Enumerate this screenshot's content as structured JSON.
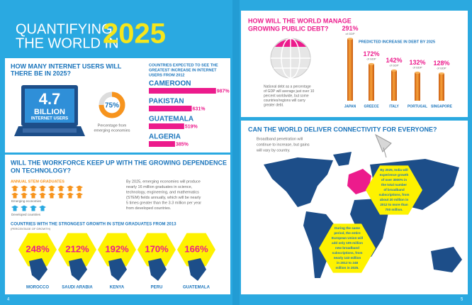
{
  "left_page": {
    "title": {
      "lines": [
        "QUANTIFYING",
        "THE WORLD IN"
      ],
      "year": "2025"
    },
    "internet": {
      "heading": [
        "HOW MANY INTERNET USERS WILL",
        "THERE BE IN 2025?"
      ],
      "users": {
        "number": "4.7",
        "unit": "BILLION",
        "label": "INTERNET USERS"
      },
      "share": {
        "value": 75,
        "label": "75%",
        "caption": [
          "Percentage from",
          "emerging economies"
        ]
      },
      "countries_heading": [
        "COUNTRIES EXPECTED TO SEE THE",
        "GREATEST INCREASE IN INTERNET",
        "USERS FROM 2012"
      ],
      "countries": [
        {
          "name": "CAMEROON",
          "value": 987,
          "label": "987%"
        },
        {
          "name": "PAKISTAN",
          "value": 631,
          "label": "631%"
        },
        {
          "name": "GUATEMALA",
          "value": 519,
          "label": "519%"
        },
        {
          "name": "ALGERIA",
          "value": 385,
          "label": "385%"
        }
      ]
    },
    "stem": {
      "heading": [
        "WILL THE WORKFORCE KEEP UP WITH THE GROWING DEPENDENCE",
        "ON TECHNOLOGY?"
      ],
      "graduates_heading": "ANNUAL STEM GRADUATES",
      "emerging_label": "Emerging economies",
      "developed_label": "Developed countries",
      "paragraph": [
        "By 2025, emerging economies will produce",
        "nearly 16 million graduates in science,",
        "technology, engineering, and mathematics",
        "(STEM) fields annually, which will be nearly",
        "5 times greater than the 3.3 million per year",
        "from developed countries."
      ],
      "growth_heading": "COUNTRIES WITH THE STRONGEST GROWTH IN STEM GRADUATES FROM 2013",
      "growth_subheading": "(PERCENTAGE OF GROWTH)",
      "countries": [
        {
          "name": "MOROCCO",
          "growth": "248%"
        },
        {
          "name": "SAUDI ARABIA",
          "growth": "212%"
        },
        {
          "name": "KENYA",
          "growth": "192%"
        },
        {
          "name": "PERU",
          "growth": "170%"
        },
        {
          "name": "GUATEMALA",
          "growth": "166%"
        }
      ]
    },
    "page_number": "4"
  },
  "right_page": {
    "debt": {
      "heading": [
        "HOW WILL THE WORLD MANAGE",
        "GROWING PUBLIC DEBT?"
      ],
      "description": [
        "National debt as a percentage",
        "of GDP will average just over 10",
        "percent worldwide, but some",
        "countries/regions will carry",
        "greater debt."
      ],
      "chart_heading": "PREDICTED INCREASE IN DEBT BY 2025",
      "unit": "of GDP",
      "countries": [
        {
          "name": "JAPAN",
          "value": 291,
          "label": "291%"
        },
        {
          "name": "GREECE",
          "value": 172,
          "label": "172%"
        },
        {
          "name": "ITALY",
          "value": 142,
          "label": "142%"
        },
        {
          "name": "PORTUGAL",
          "value": 132,
          "label": "132%"
        },
        {
          "name": "SINGAPORE",
          "value": 128,
          "label": "128%"
        }
      ]
    },
    "connectivity": {
      "heading": "CAN THE WORLD DELIVER CONNECTIVITY FOR EVERYONE?",
      "description": [
        "Broadband penetration will",
        "continue to increase, but gains",
        "will vary by country."
      ],
      "india_note": [
        "By 2025, India will",
        "experience growth",
        "of over 3000% in",
        "the total number",
        "of broadband",
        "subscriptions, from",
        "about 20 million in",
        "2012 to more than",
        "700 million."
      ],
      "eu_note": [
        "During the same",
        "period, the entire",
        "European Union will",
        "add only 105 million",
        "new broadband",
        "subscriptions, from",
        "nearly 143 million",
        "in 2012 to 248",
        "million in 2025."
      ]
    },
    "page_number": "5"
  }
}
